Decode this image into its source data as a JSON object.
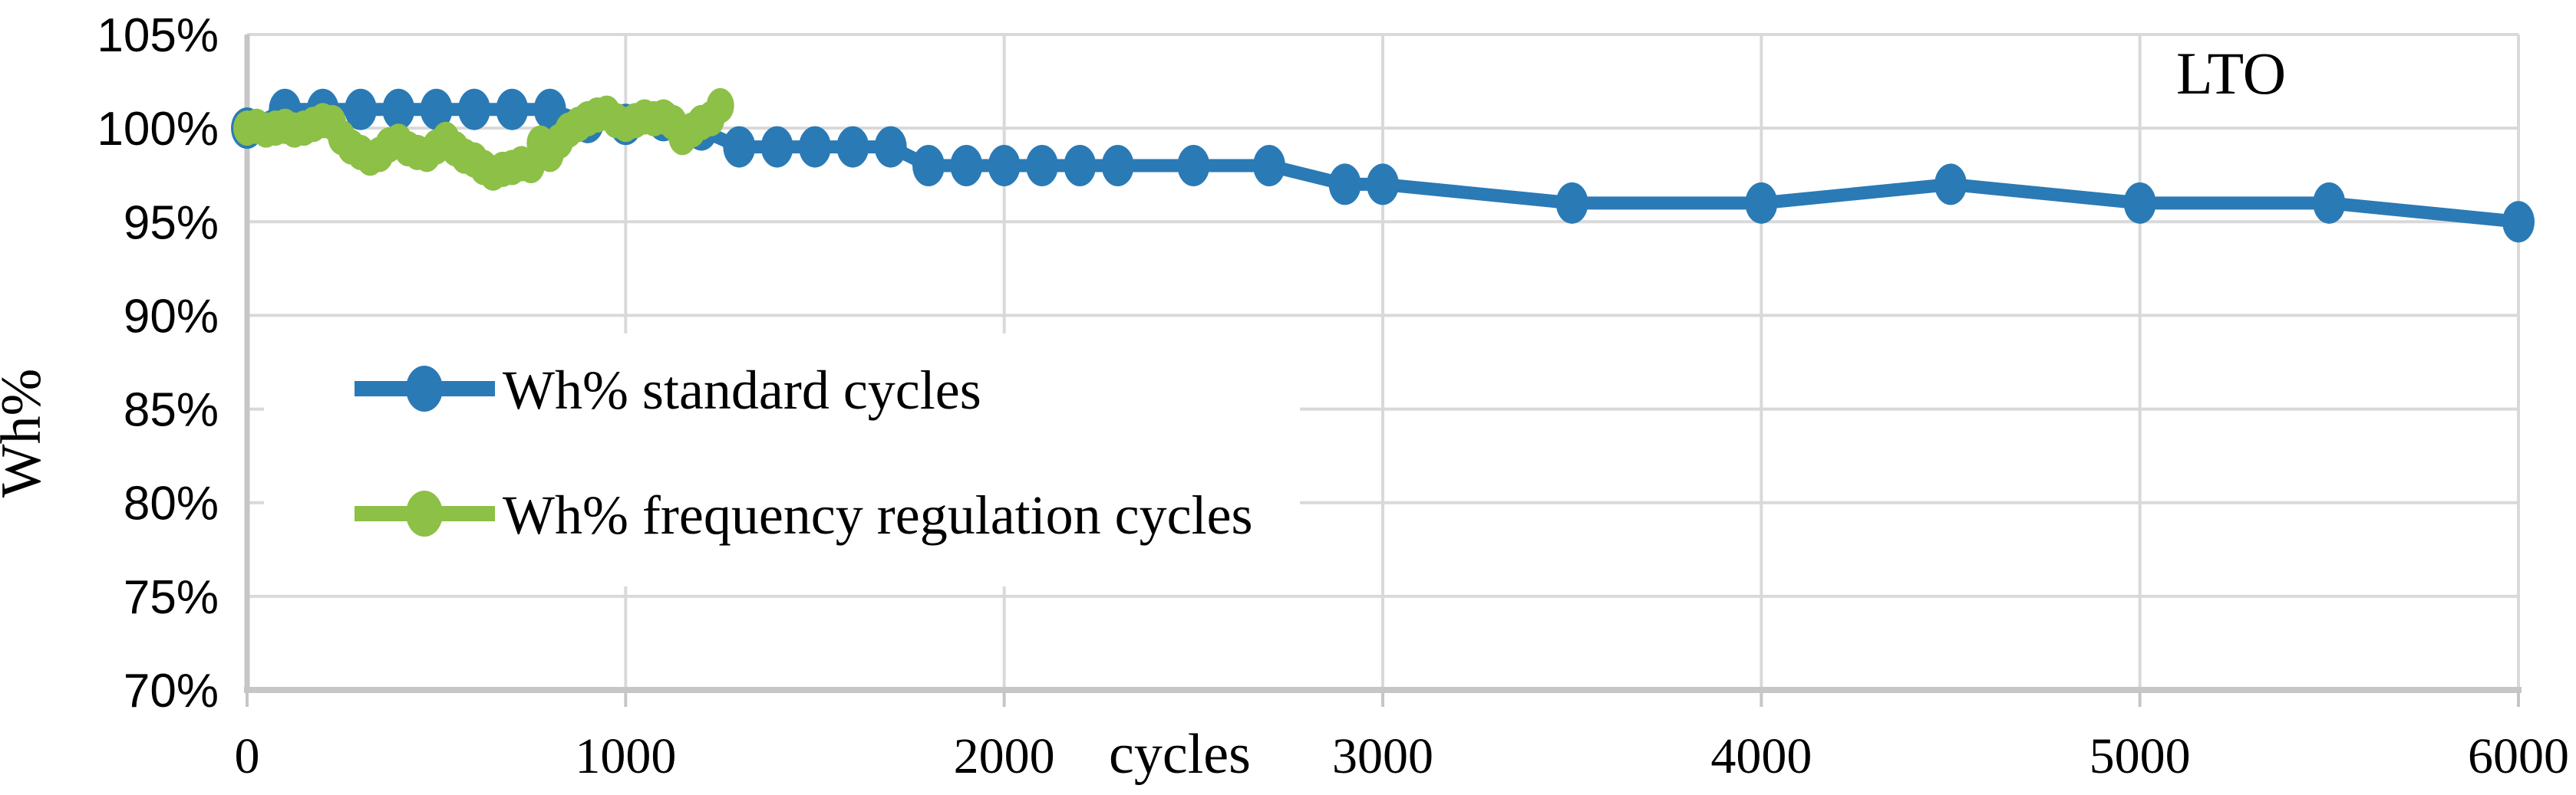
{
  "figure": {
    "annotation": "LTO",
    "x_axis_title": "cycles",
    "y_axis_title": "Wh%"
  },
  "legend": {
    "items": [
      {
        "label": "Wh% standard cycles",
        "color": "#2a7ab6"
      },
      {
        "label": "Wh% frequency regulation cycles",
        "color": "#8cc046"
      }
    ]
  },
  "colors": {
    "series_standard": "#2a7ab6",
    "series_frequency": "#8cc046",
    "gridline": "#d9d9d9",
    "axis_line": "#c6c6c6",
    "text": "#000000",
    "background": "#ffffff"
  },
  "chart_data": {
    "type": "line",
    "title": "",
    "annotation": "LTO",
    "xlabel": "cycles",
    "ylabel": "Wh%",
    "xlim": [
      0,
      6000
    ],
    "ylim": [
      70,
      105
    ],
    "x_ticks": [
      0,
      1000,
      2000,
      3000,
      4000,
      5000,
      6000
    ],
    "y_ticks": [
      70,
      75,
      80,
      85,
      90,
      95,
      100,
      105
    ],
    "y_tick_suffix": "%",
    "grid": true,
    "legend_position": "inside-upper-left",
    "series": [
      {
        "name": "Wh% standard cycles",
        "color": "#2a7ab6",
        "marker": "circle",
        "x": [
          0,
          100,
          200,
          300,
          400,
          500,
          600,
          700,
          800,
          900,
          1000,
          1100,
          1200,
          1300,
          1400,
          1500,
          1600,
          1700,
          1800,
          1900,
          2000,
          2100,
          2200,
          2300,
          2500,
          2700,
          2900,
          3000,
          3500,
          4000,
          4500,
          5000,
          5500,
          6000
        ],
        "y": [
          100,
          101,
          101,
          101,
          101,
          101,
          101,
          101,
          101,
          100.3,
          100.2,
          100.4,
          99.9,
          99,
          99,
          99,
          99,
          99,
          98,
          98,
          98,
          98,
          98,
          98,
          98,
          98,
          97,
          97,
          96,
          96,
          97,
          96,
          96,
          95
        ]
      },
      {
        "name": "Wh% frequency regulation cycles",
        "color": "#8cc046",
        "marker": "circle",
        "x": [
          0,
          25,
          50,
          75,
          100,
          125,
          150,
          175,
          200,
          225,
          250,
          275,
          300,
          325,
          350,
          375,
          400,
          425,
          450,
          475,
          500,
          525,
          550,
          575,
          600,
          625,
          650,
          675,
          700,
          725,
          750,
          775,
          800,
          825,
          850,
          875,
          900,
          925,
          950,
          975,
          1000,
          1025,
          1050,
          1075,
          1100,
          1125,
          1150,
          1175,
          1200,
          1225,
          1250
        ],
        "y": [
          100.0,
          100.1,
          99.9,
          100.0,
          100.1,
          99.9,
          100.0,
          100.2,
          100.4,
          100.3,
          99.5,
          99.0,
          98.7,
          98.4,
          98.6,
          99.1,
          99.3,
          98.9,
          98.7,
          98.6,
          99.0,
          99.4,
          98.9,
          98.5,
          98.3,
          97.9,
          97.6,
          97.8,
          97.9,
          98.1,
          98.0,
          99.2,
          98.6,
          99.3,
          99.9,
          100.2,
          100.5,
          100.7,
          100.8,
          100.4,
          100.2,
          100.4,
          100.6,
          100.5,
          100.6,
          100.3,
          99.5,
          99.9,
          100.3,
          100.5,
          101.2
        ]
      }
    ]
  }
}
